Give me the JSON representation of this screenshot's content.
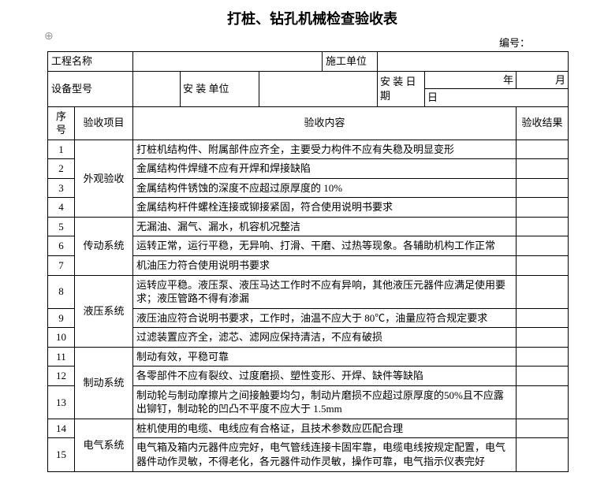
{
  "title": "打桩、钻孔机械检查验收表",
  "doc_number_label": "编号：",
  "header": {
    "project_name_label": "工程名称",
    "construction_unit_label": "施工单位",
    "equipment_model_label": "设备型号",
    "install_unit_label": "安 装 单位",
    "install_date_label": "安 装 日期",
    "date_year": "年",
    "date_month": "月",
    "date_day": "日"
  },
  "columns": {
    "seq": "序号",
    "category": "验收项目",
    "content": "验收内容",
    "result": "验收结果"
  },
  "groups": [
    {
      "category": "外观验收",
      "rows": [
        {
          "n": "1",
          "text": "打桩机结构件、附属部件应齐全，主要受力构件不应有失稳及明显变形"
        },
        {
          "n": "2",
          "text": "金属结构件焊缝不应有开焊和焊接缺陷"
        },
        {
          "n": "3",
          "text": "金属结构件锈蚀的深度不应超过原厚度的 10%"
        },
        {
          "n": "4",
          "text": "金属结构杆件螺栓连接或铆接紧固，符合使用说明书要求"
        }
      ]
    },
    {
      "category": "传动系统",
      "rows": [
        {
          "n": "5",
          "text": "无漏油、漏气、漏水，机容机况整洁"
        },
        {
          "n": "6",
          "text": "运转正常，运行平稳，无异响、打滑、干磨、过热等现象。各辅助机构工作正常"
        },
        {
          "n": "7",
          "text": "机油压力符合使用说明书要求"
        }
      ]
    },
    {
      "category": "液压系统",
      "rows": [
        {
          "n": "8",
          "text": "运转应平稳。液压泵、液压马达工作时不应有异响，其他液压元器件应满足使用要求；液压管路不得有渗漏"
        },
        {
          "n": "9",
          "text": "液压油应符合说明书要求，工作时，油温不应大于 80℃，油量应符合规定要求"
        },
        {
          "n": "10",
          "text": "过滤装置应齐全，滤芯、滤网应保持清洁，不应有破损"
        }
      ]
    },
    {
      "category": "制动系统",
      "rows": [
        {
          "n": "11",
          "text": "制动有效，平稳可靠"
        },
        {
          "n": "12",
          "text": "各零部件不应有裂纹、过度磨损、塑性变形、开焊、缺件等缺陷"
        },
        {
          "n": "13",
          "text": "制动轮与制动摩擦片之间接触要均匀，制动片磨损不应超过原厚度的50%且不应露出铆钉，制动轮的凹凸不平度不应大于 1.5mm"
        }
      ]
    },
    {
      "category": "电气系统",
      "rows": [
        {
          "n": "14",
          "text": "桩机使用的电缆、电线应有合格证，且技术参数应匹配合理"
        },
        {
          "n": "15",
          "text": "电气箱及箱内元器件应完好，电气管线连接卡固牢靠，电缆电线按规定配置，电气器件动作灵敏，不得老化，各元器件动作灵敏，操作可靠，电气指示仪表完好"
        }
      ]
    }
  ]
}
